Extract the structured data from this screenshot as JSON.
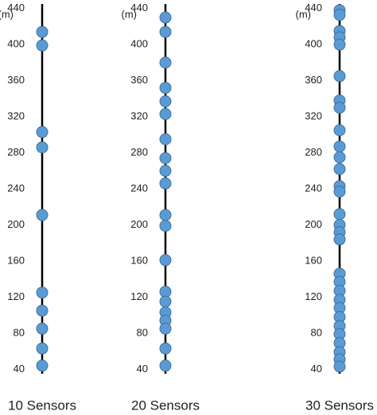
{
  "chart_data": [
    {
      "type": "strip",
      "title": "10 Sensors",
      "y_label": "(m)",
      "color": "#5b9bd5",
      "values": [
        414,
        399,
        303,
        286,
        211,
        125,
        105,
        85,
        63,
        44
      ],
      "ylim": [
        35,
        445
      ],
      "yticks": [
        40,
        80,
        120,
        160,
        200,
        240,
        280,
        320,
        360,
        400,
        440
      ]
    },
    {
      "type": "strip",
      "title": "20 Sensors",
      "y_label": "(m)",
      "color": "#5b9bd5",
      "values": [
        430,
        414,
        380,
        352,
        337,
        323,
        295,
        274,
        260,
        246,
        211,
        199,
        161,
        126,
        115,
        103,
        94,
        85,
        63,
        44
      ],
      "ylim": [
        35,
        445
      ],
      "yticks": [
        40,
        80,
        120,
        160,
        200,
        240,
        280,
        320,
        360,
        400,
        440
      ]
    },
    {
      "type": "strip",
      "title": "30 Sensors",
      "y_label": "(m)",
      "color": "#5b9bd5",
      "values": [
        438,
        433,
        415,
        408,
        400,
        365,
        338,
        330,
        305,
        287,
        275,
        262,
        243,
        237,
        212,
        200,
        192,
        184,
        146,
        137,
        127,
        117,
        108,
        98,
        88,
        79,
        69,
        59,
        51,
        43
      ],
      "ylim": [
        35,
        445
      ],
      "yticks": [
        40,
        80,
        120,
        160,
        200,
        240,
        280,
        320,
        360,
        400,
        440
      ]
    }
  ]
}
